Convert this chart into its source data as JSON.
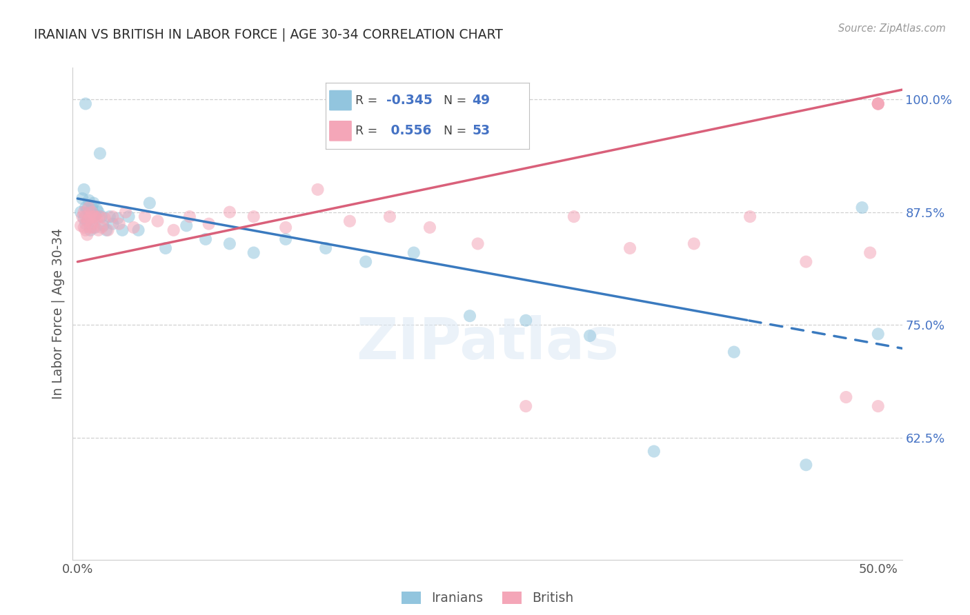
{
  "title": "IRANIAN VS BRITISH IN LABOR FORCE | AGE 30-34 CORRELATION CHART",
  "source": "Source: ZipAtlas.com",
  "ylabel": "In Labor Force | Age 30-34",
  "ylim": [
    0.49,
    1.035
  ],
  "xlim": [
    -0.003,
    0.515
  ],
  "yticks": [
    0.625,
    0.75,
    0.875,
    1.0
  ],
  "ytick_labels": [
    "62.5%",
    "75.0%",
    "87.5%",
    "100.0%"
  ],
  "xtick_labels": [
    "0.0%",
    "50.0%"
  ],
  "xticks": [
    0.0,
    0.5
  ],
  "iranian_color": "#92c5de",
  "british_color": "#f4a6b8",
  "iranian_line_color": "#3a7abf",
  "british_line_color": "#d9607a",
  "background_color": "#ffffff",
  "R_iranian": -0.345,
  "N_iranian": 49,
  "R_british": 0.556,
  "N_british": 53,
  "legend_color_RN": "#4472c4",
  "legend_color_label": "#555555",
  "iranians_x": [
    0.002,
    0.003,
    0.004,
    0.004,
    0.005,
    0.005,
    0.005,
    0.006,
    0.006,
    0.007,
    0.007,
    0.008,
    0.008,
    0.009,
    0.009,
    0.01,
    0.01,
    0.011,
    0.011,
    0.012,
    0.013,
    0.014,
    0.015,
    0.016,
    0.018,
    0.02,
    0.022,
    0.025,
    0.028,
    0.032,
    0.038,
    0.045,
    0.055,
    0.068,
    0.08,
    0.095,
    0.11,
    0.13,
    0.155,
    0.18,
    0.21,
    0.245,
    0.28,
    0.32,
    0.36,
    0.41,
    0.455,
    0.49,
    0.5
  ],
  "iranians_y": [
    0.875,
    0.89,
    0.868,
    0.9,
    0.88,
    0.862,
    0.995,
    0.878,
    0.865,
    0.875,
    0.888,
    0.87,
    0.855,
    0.88,
    0.87,
    0.885,
    0.868,
    0.872,
    0.858,
    0.878,
    0.875,
    0.94,
    0.87,
    0.86,
    0.855,
    0.87,
    0.862,
    0.868,
    0.855,
    0.87,
    0.855,
    0.885,
    0.835,
    0.86,
    0.845,
    0.84,
    0.83,
    0.845,
    0.835,
    0.82,
    0.83,
    0.76,
    0.755,
    0.738,
    0.61,
    0.72,
    0.595,
    0.88,
    0.74
  ],
  "british_x": [
    0.002,
    0.003,
    0.004,
    0.004,
    0.005,
    0.005,
    0.006,
    0.006,
    0.007,
    0.007,
    0.008,
    0.008,
    0.009,
    0.009,
    0.01,
    0.01,
    0.011,
    0.012,
    0.013,
    0.014,
    0.015,
    0.017,
    0.019,
    0.022,
    0.026,
    0.03,
    0.035,
    0.042,
    0.05,
    0.06,
    0.07,
    0.082,
    0.095,
    0.11,
    0.13,
    0.15,
    0.17,
    0.195,
    0.22,
    0.25,
    0.28,
    0.31,
    0.345,
    0.385,
    0.42,
    0.455,
    0.48,
    0.495,
    0.5,
    0.5,
    0.5,
    0.5,
    0.5
  ],
  "british_y": [
    0.86,
    0.87,
    0.875,
    0.858,
    0.87,
    0.855,
    0.865,
    0.85,
    0.88,
    0.868,
    0.87,
    0.858,
    0.875,
    0.862,
    0.87,
    0.858,
    0.87,
    0.868,
    0.855,
    0.87,
    0.858,
    0.868,
    0.855,
    0.87,
    0.862,
    0.875,
    0.858,
    0.87,
    0.865,
    0.855,
    0.87,
    0.862,
    0.875,
    0.87,
    0.858,
    0.9,
    0.865,
    0.87,
    0.858,
    0.84,
    0.66,
    0.87,
    0.835,
    0.84,
    0.87,
    0.82,
    0.67,
    0.83,
    0.995,
    0.995,
    0.995,
    0.995,
    0.66
  ]
}
